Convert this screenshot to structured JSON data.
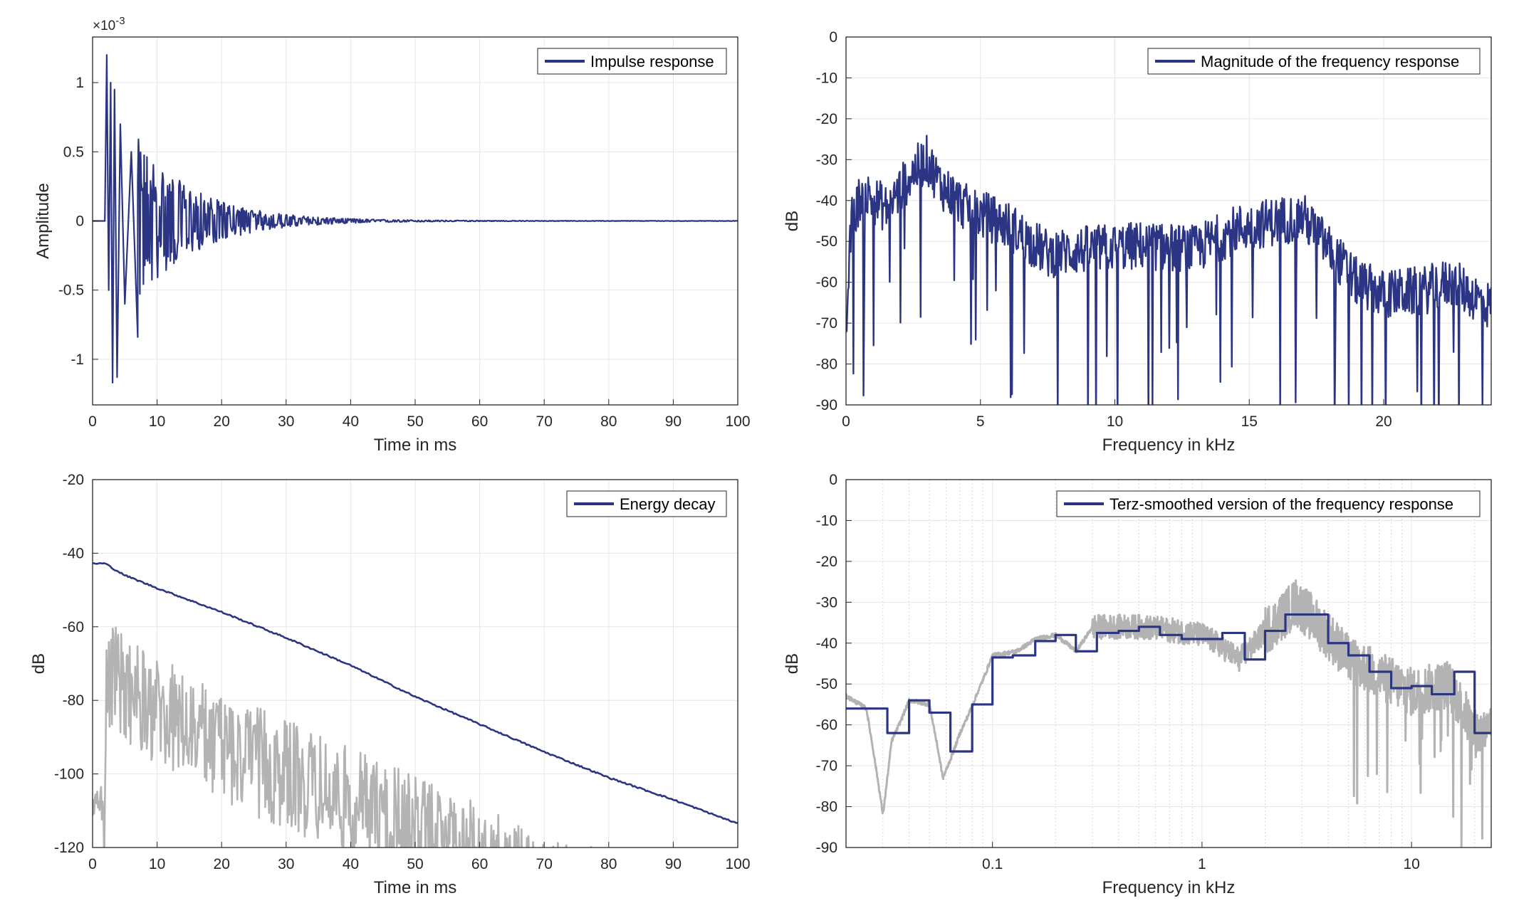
{
  "colors": {
    "series": "#2b3583",
    "gray": "#b3b3b3",
    "grid": "#e6e6e6",
    "axis": "#262626"
  },
  "chart_data": [
    {
      "type": "line",
      "id": "impulse",
      "xlabel": "Time in ms",
      "ylabel": "Amplitude",
      "xlim": [
        0,
        100
      ],
      "ylim": [
        -1.33,
        1.33
      ],
      "xticks": [
        0,
        10,
        20,
        30,
        40,
        50,
        60,
        70,
        80,
        90,
        100
      ],
      "xtick_labels": [
        "0",
        "10",
        "20",
        "30",
        "40",
        "50",
        "60",
        "70",
        "80",
        "90",
        "100"
      ],
      "yticks": [
        -1,
        -0.5,
        0,
        0.5,
        1
      ],
      "ytick_labels": [
        "-1",
        "-0.5",
        "0",
        "0.5",
        "1"
      ],
      "exponent_label": "×10-3",
      "grid": true,
      "legend_position": "top-right",
      "series": [
        {
          "name": "Impulse response",
          "color": "#2b3583",
          "onset_ms": 2.2,
          "peak": 1.2,
          "min": -1.17,
          "decay_tau_ms": 9,
          "points": [
            [
              0,
              0
            ],
            [
              1.9,
              0
            ],
            [
              2.2,
              1.2
            ],
            [
              2.5,
              -0.5
            ],
            [
              2.8,
              1.0
            ],
            [
              3.1,
              -1.17
            ],
            [
              3.4,
              0.95
            ],
            [
              3.8,
              -1.13
            ],
            [
              4.3,
              0.7
            ],
            [
              5.0,
              -0.6
            ],
            [
              6.0,
              0.5
            ],
            [
              7.0,
              -0.84
            ],
            [
              10,
              0.45
            ],
            [
              13,
              -0.35
            ],
            [
              20,
              0.2
            ],
            [
              30,
              -0.1
            ],
            [
              40,
              0.03
            ],
            [
              50,
              0.01
            ],
            [
              60,
              0.005
            ],
            [
              100,
              0
            ]
          ]
        }
      ]
    },
    {
      "type": "line",
      "id": "magnitude",
      "xlabel": "Frequency in kHz",
      "ylabel": "dB",
      "xlim": [
        0,
        24
      ],
      "ylim": [
        -90,
        0
      ],
      "xticks": [
        0,
        5,
        10,
        15,
        20
      ],
      "xtick_labels": [
        "0",
        "5",
        "10",
        "15",
        "20"
      ],
      "yticks": [
        -90,
        -80,
        -70,
        -60,
        -50,
        -40,
        -30,
        -20,
        -10,
        0
      ],
      "ytick_labels": [
        "-90",
        "-80",
        "-70",
        "-60",
        "-50",
        "-40",
        "-30",
        "-20",
        "-10",
        "0"
      ],
      "grid": true,
      "legend_position": "top-right",
      "series": [
        {
          "name": "Magnitude of the frequency response",
          "color": "#2b3583",
          "envelope_khz_db": [
            [
              0,
              -72
            ],
            [
              0.2,
              -45
            ],
            [
              0.6,
              -38
            ],
            [
              1.5,
              -42
            ],
            [
              2.5,
              -33
            ],
            [
              3.0,
              -30
            ],
            [
              3.5,
              -36
            ],
            [
              4.5,
              -42
            ],
            [
              6,
              -46
            ],
            [
              7.5,
              -53
            ],
            [
              9,
              -52
            ],
            [
              11,
              -51
            ],
            [
              13,
              -52
            ],
            [
              14.5,
              -47
            ],
            [
              16,
              -45
            ],
            [
              17,
              -44
            ],
            [
              18,
              -52
            ],
            [
              19,
              -60
            ],
            [
              20,
              -63
            ],
            [
              21.5,
              -62
            ],
            [
              22.5,
              -60
            ],
            [
              24,
              -66
            ]
          ]
        }
      ]
    },
    {
      "type": "line",
      "id": "energy",
      "xlabel": "Time in ms",
      "ylabel": "dB",
      "xlim": [
        0,
        100
      ],
      "ylim": [
        -120,
        -20
      ],
      "xticks": [
        0,
        10,
        20,
        30,
        40,
        50,
        60,
        70,
        80,
        90,
        100
      ],
      "xtick_labels": [
        "0",
        "10",
        "20",
        "30",
        "40",
        "50",
        "60",
        "70",
        "80",
        "90",
        "100"
      ],
      "yticks": [
        -120,
        -100,
        -80,
        -60,
        -40,
        -20
      ],
      "ytick_labels": [
        "-120",
        "-100",
        "-80",
        "-60",
        "-40",
        "-20"
      ],
      "grid": true,
      "legend_position": "top-right",
      "series": [
        {
          "name": "Energy decay",
          "color": "#2b3583",
          "points": [
            [
              0,
              -42.8
            ],
            [
              2,
              -42.8
            ],
            [
              3,
              -44
            ],
            [
              5,
              -46
            ],
            [
              10,
              -49.5
            ],
            [
              20,
              -56
            ],
            [
              30,
              -63
            ],
            [
              40,
              -70.5
            ],
            [
              50,
              -79
            ],
            [
              60,
              -86.5
            ],
            [
              70,
              -94
            ],
            [
              80,
              -101
            ],
            [
              90,
              -107
            ],
            [
              100,
              -113.5
            ]
          ]
        },
        {
          "color": "#b3b3b3",
          "points": [
            [
              0,
              -108
            ],
            [
              1.8,
              -108
            ],
            [
              2.2,
              -58
            ],
            [
              10,
              -68
            ],
            [
              20,
              -78
            ],
            [
              30,
              -85
            ],
            [
              40,
              -93
            ],
            [
              50,
              -100
            ],
            [
              60,
              -108
            ],
            [
              70,
              -118
            ],
            [
              78,
              -120
            ]
          ]
        }
      ]
    },
    {
      "type": "line",
      "id": "terz",
      "xlabel": "Frequency in kHz",
      "ylabel": "dB",
      "xscale": "log",
      "xlim": [
        0.02,
        24
      ],
      "ylim": [
        -90,
        0
      ],
      "xticks": [
        0.1,
        1,
        10
      ],
      "xtick_labels": [
        "0.1",
        "1",
        "10"
      ],
      "yticks": [
        -90,
        -80,
        -70,
        -60,
        -50,
        -40,
        -30,
        -20,
        -10,
        0
      ],
      "ytick_labels": [
        "-90",
        "-80",
        "-70",
        "-60",
        "-50",
        "-40",
        "-30",
        "-20",
        "-10",
        "0"
      ],
      "grid": true,
      "legend_position": "top-right",
      "series": [
        {
          "name": "Terz-smoothed version of the frequency response",
          "color": "#2b3583",
          "bands_khz_db": [
            [
              0.02,
              -56
            ],
            [
              0.025,
              -56
            ],
            [
              0.0315,
              -62
            ],
            [
              0.04,
              -54
            ],
            [
              0.05,
              -57
            ],
            [
              0.063,
              -66.5
            ],
            [
              0.08,
              -55
            ],
            [
              0.1,
              -43.5
            ],
            [
              0.125,
              -43
            ],
            [
              0.16,
              -39.5
            ],
            [
              0.2,
              -38
            ],
            [
              0.25,
              -42
            ],
            [
              0.315,
              -37.5
            ],
            [
              0.4,
              -37
            ],
            [
              0.5,
              -36
            ],
            [
              0.63,
              -38
            ],
            [
              0.8,
              -39
            ],
            [
              1.0,
              -39
            ],
            [
              1.25,
              -37.5
            ],
            [
              1.6,
              -44
            ],
            [
              2.0,
              -37
            ],
            [
              2.5,
              -33
            ],
            [
              3.15,
              -33
            ],
            [
              4.0,
              -40
            ],
            [
              5.0,
              -43
            ],
            [
              6.3,
              -47
            ],
            [
              8.0,
              -51
            ],
            [
              10,
              -50.5
            ],
            [
              12.5,
              -52.5
            ],
            [
              16,
              -47
            ],
            [
              20,
              -62
            ],
            [
              24,
              -62
            ]
          ]
        },
        {
          "color": "#b3b3b3",
          "envelope_khz_db": [
            [
              0.02,
              -53
            ],
            [
              0.025,
              -56
            ],
            [
              0.03,
              -82
            ],
            [
              0.033,
              -64
            ],
            [
              0.04,
              -54
            ],
            [
              0.05,
              -55
            ],
            [
              0.058,
              -73
            ],
            [
              0.07,
              -62
            ],
            [
              0.085,
              -52
            ],
            [
              0.1,
              -43
            ],
            [
              0.13,
              -42
            ],
            [
              0.16,
              -39
            ],
            [
              0.2,
              -38
            ],
            [
              0.25,
              -42
            ],
            [
              0.3,
              -36
            ],
            [
              0.5,
              -36
            ],
            [
              1,
              -38
            ],
            [
              1.5,
              -44
            ],
            [
              2,
              -37
            ],
            [
              2.8,
              -30
            ],
            [
              3.5,
              -35
            ],
            [
              5,
              -44
            ],
            [
              7,
              -48
            ],
            [
              10,
              -52
            ],
            [
              15,
              -50
            ],
            [
              20,
              -62
            ],
            [
              24,
              -62
            ]
          ]
        }
      ]
    }
  ]
}
